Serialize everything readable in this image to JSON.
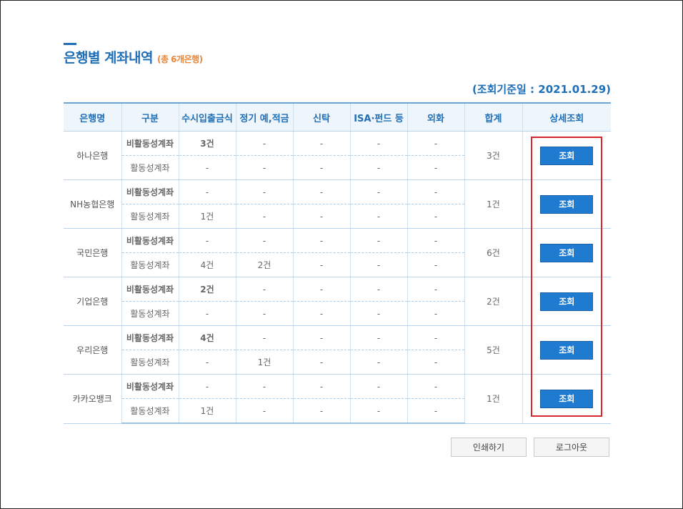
{
  "title": "은행별 계좌내역",
  "title_count": "(총 6개은행)",
  "ref_date": "(조회기준일 : 2021.01.29)",
  "headers": [
    "은행명",
    "구분",
    "수시입출금식",
    "정기 예,적금",
    "신탁",
    "ISA·펀드 등",
    "외화",
    "합계",
    "상세조회"
  ],
  "type_labels": {
    "inactive": "비활동성계좌",
    "active": "활동성계좌"
  },
  "query_label": "조회",
  "banks": [
    {
      "name": "하나은행",
      "total": "3건",
      "inactive": [
        "3건",
        "-",
        "-",
        "-",
        "-"
      ],
      "active": [
        "-",
        "-",
        "-",
        "-",
        "-"
      ]
    },
    {
      "name": "NH농협은행",
      "total": "1건",
      "inactive": [
        "-",
        "-",
        "-",
        "-",
        "-"
      ],
      "active": [
        "1건",
        "-",
        "-",
        "-",
        "-"
      ]
    },
    {
      "name": "국민은행",
      "total": "6건",
      "inactive": [
        "-",
        "-",
        "-",
        "-",
        "-"
      ],
      "active": [
        "4건",
        "2건",
        "-",
        "-",
        "-"
      ]
    },
    {
      "name": "기업은행",
      "total": "2건",
      "inactive": [
        "2건",
        "-",
        "-",
        "-",
        "-"
      ],
      "active": [
        "-",
        "-",
        "-",
        "-",
        "-"
      ]
    },
    {
      "name": "우리은행",
      "total": "5건",
      "inactive": [
        "4건",
        "-",
        "-",
        "-",
        "-"
      ],
      "active": [
        "-",
        "1건",
        "-",
        "-",
        "-"
      ]
    },
    {
      "name": "카카오뱅크",
      "total": "1건",
      "inactive": [
        "-",
        "-",
        "-",
        "-",
        "-"
      ],
      "active": [
        "1건",
        "-",
        "-",
        "-",
        "-"
      ]
    }
  ],
  "buttons": {
    "print": "인쇄하기",
    "logout": "로그아웃"
  },
  "colors": {
    "accent": "#1e6fb8",
    "count": "#e8863a",
    "button": "#1f7bd0",
    "highlight_box": "#d8262f"
  }
}
